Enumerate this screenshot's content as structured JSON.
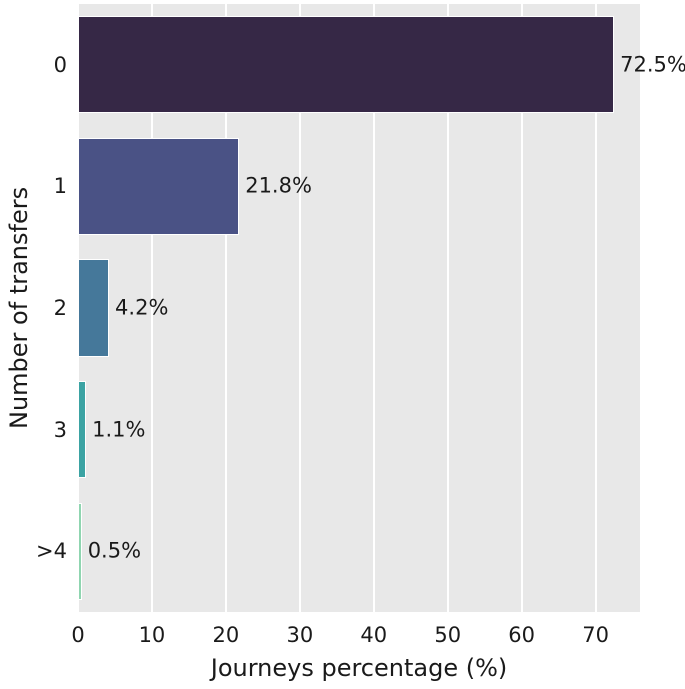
{
  "chart_data": {
    "type": "bar",
    "orientation": "horizontal",
    "title": "",
    "categories": [
      "0",
      "1",
      "2",
      "3",
      ">4"
    ],
    "values": [
      72.5,
      21.8,
      4.2,
      1.1,
      0.5
    ],
    "bar_labels": [
      "72.5%",
      "21.8%",
      "4.2%",
      "1.1%",
      "0.5%"
    ],
    "xlabel": "Journeys percentage (%)",
    "ylabel": "Number of transfers",
    "xlim": [
      0,
      76
    ],
    "xticks": [
      0,
      10,
      20,
      30,
      40,
      50,
      60,
      70
    ],
    "grid": true,
    "legend": "none",
    "bar_colors": [
      "#362846",
      "#4a5285",
      "#45789a",
      "#3ba3a3",
      "#8fd5b0"
    ],
    "plot_background": "#e8e8e8",
    "grid_color": "#ffffff",
    "bar_edge_color": "#ffffff",
    "text_color": "#1a1a1a"
  }
}
